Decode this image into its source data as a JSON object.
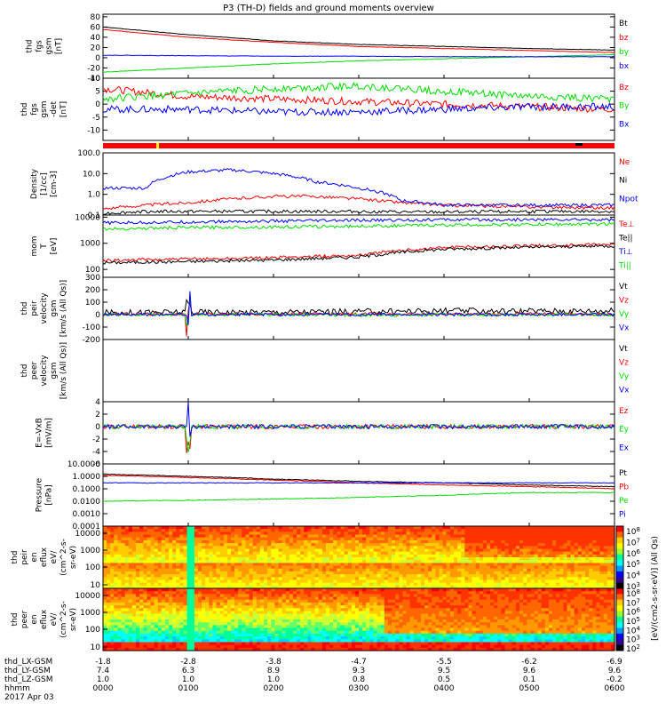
{
  "title": "P3 (TH-D) fields and ground moments overview",
  "colors": {
    "black": "#000000",
    "red": "#ff0000",
    "green": "#00dd00",
    "blue": "#0000ff"
  },
  "chart_data": [
    {
      "type": "line",
      "panel": "fgs_gsm",
      "ylabel": [
        "thd",
        "fgs",
        "gsm",
        "[nT]"
      ],
      "yticks": [
        80,
        60,
        40,
        20,
        0,
        -20,
        -40
      ],
      "ylim": [
        -40,
        85
      ],
      "series": [
        {
          "name": "Bt",
          "color": "black",
          "x": [
            0,
            1,
            2,
            3,
            4,
            5,
            6
          ],
          "y": [
            60,
            45,
            33,
            26,
            22,
            18,
            15
          ]
        },
        {
          "name": "bz",
          "color": "red",
          "x": [
            0,
            1,
            2,
            3,
            4,
            5,
            6
          ],
          "y": [
            55,
            40,
            30,
            22,
            18,
            14,
            10
          ]
        },
        {
          "name": "by",
          "color": "green",
          "x": [
            0,
            1,
            2,
            3,
            4,
            5,
            6
          ],
          "y": [
            -28,
            -20,
            -12,
            -6,
            -2,
            2,
            6
          ]
        },
        {
          "name": "bx",
          "color": "blue",
          "x": [
            0,
            1,
            2,
            3,
            4,
            5,
            6
          ],
          "y": [
            5,
            4,
            3,
            3,
            2,
            2,
            2
          ]
        }
      ]
    },
    {
      "type": "line",
      "panel": "fgs_gsm_detrended",
      "ylabel": [
        "thd",
        "fgs",
        "gsm",
        "-det",
        "[nT]"
      ],
      "yticks": [
        10,
        5,
        0,
        -5,
        -10
      ],
      "ylim": [
        -14,
        10
      ],
      "series": [
        {
          "name": "Bz",
          "color": "red",
          "x": [
            0,
            1,
            2,
            3,
            4,
            5,
            6
          ],
          "y": [
            6,
            3,
            2,
            1,
            0,
            -1,
            -2
          ]
        },
        {
          "name": "By",
          "color": "green",
          "x": [
            0,
            1,
            2,
            3,
            4,
            5,
            6
          ],
          "y": [
            2,
            4,
            6,
            7,
            5,
            3,
            2
          ]
        },
        {
          "name": "Bx",
          "color": "blue",
          "x": [
            0,
            1,
            2,
            3,
            4,
            5,
            6
          ],
          "y": [
            -2,
            -2,
            -3,
            -3,
            -2,
            -1,
            -1
          ]
        }
      ]
    },
    {
      "type": "line",
      "panel": "density",
      "scale": "log",
      "ylabel": [
        "Density",
        "[1/cc]",
        "[cm-3]"
      ],
      "yticks": [
        "100.0",
        "10.0",
        "1.0",
        "0.1"
      ],
      "ylim": [
        0.1,
        100
      ],
      "series": [
        {
          "name": "Ne",
          "color": "red",
          "x": [
            0,
            0.5,
            1,
            1.5,
            2,
            2.5,
            3,
            3.5,
            4,
            5,
            6
          ],
          "y": [
            0.2,
            0.3,
            0.4,
            0.6,
            0.8,
            0.8,
            0.6,
            0.4,
            0.3,
            0.25,
            0.22
          ]
        },
        {
          "name": "Ni",
          "color": "black",
          "x": [
            0,
            0.5,
            1,
            1.5,
            2,
            2.5,
            3,
            3.5,
            4,
            5,
            6
          ],
          "y": [
            0.12,
            0.15,
            0.15,
            0.15,
            0.15,
            0.15,
            0.15,
            0.14,
            0.14,
            0.15,
            0.15
          ]
        },
        {
          "name": "Npot",
          "color": "blue",
          "x": [
            0,
            0.5,
            1,
            1.5,
            2,
            2.5,
            3,
            3.5,
            4,
            5,
            6
          ],
          "y": [
            2,
            2,
            12,
            15,
            10,
            4,
            2,
            0.5,
            0.3,
            0.3,
            0.3
          ]
        }
      ]
    },
    {
      "type": "line",
      "panel": "temperature",
      "scale": "log",
      "ylabel": [
        "mom",
        "T",
        "[eV]"
      ],
      "yticks": [
        "10000",
        "1000",
        "100"
      ],
      "ylim": [
        50,
        12000
      ],
      "series": [
        {
          "name": "Te⊥",
          "color": "red",
          "x": [
            0,
            1,
            2,
            3,
            4,
            5,
            6
          ],
          "y": [
            220,
            250,
            280,
            350,
            700,
            800,
            900
          ]
        },
        {
          "name": "Te||",
          "color": "black",
          "x": [
            0,
            1,
            2,
            3,
            4,
            5,
            6
          ],
          "y": [
            180,
            200,
            230,
            300,
            600,
            700,
            800
          ]
        },
        {
          "name": "Ti⊥",
          "color": "blue",
          "x": [
            0,
            1,
            2,
            3,
            4,
            5,
            6
          ],
          "y": [
            6000,
            6500,
            7000,
            7500,
            8000,
            8000,
            8000
          ]
        },
        {
          "name": "Ti||",
          "color": "green",
          "x": [
            0,
            1,
            2,
            3,
            4,
            5,
            6
          ],
          "y": [
            3500,
            4000,
            4200,
            4500,
            5000,
            5200,
            5500
          ]
        }
      ]
    },
    {
      "type": "line",
      "panel": "peir_velocity",
      "ylabel": [
        "thd",
        "peir",
        "velocity",
        "gsm",
        "[km/s (All Qs)]"
      ],
      "yticks": [
        300,
        200,
        100,
        0,
        -100,
        -200
      ],
      "ylim": [
        -200,
        300
      ],
      "series": [
        {
          "name": "Vt",
          "color": "black",
          "x": [
            0,
            1,
            2,
            3,
            4,
            5,
            6
          ],
          "y": [
            15,
            20,
            20,
            25,
            30,
            30,
            30
          ]
        },
        {
          "name": "Vz",
          "color": "red",
          "x": [
            0,
            1,
            2,
            3,
            4,
            5,
            6
          ],
          "y": [
            5,
            5,
            5,
            5,
            5,
            5,
            5
          ]
        },
        {
          "name": "Vy",
          "color": "green",
          "x": [
            0,
            1,
            2,
            3,
            4,
            5,
            6
          ],
          "y": [
            0,
            0,
            0,
            -5,
            0,
            0,
            0
          ]
        },
        {
          "name": "Vx",
          "color": "blue",
          "x": [
            0,
            1,
            2,
            3,
            4,
            5,
            6
          ],
          "y": [
            0,
            0,
            0,
            0,
            0,
            0,
            0
          ]
        }
      ]
    },
    {
      "type": "line",
      "panel": "peer_velocity",
      "ylabel": [
        "thd",
        "peer",
        "velocity",
        "gsm",
        "[km/s (All Qs)]"
      ],
      "yticks": [],
      "series": [
        {
          "name": "Vt",
          "color": "black",
          "x": [],
          "y": []
        },
        {
          "name": "Vz",
          "color": "red",
          "x": [],
          "y": []
        },
        {
          "name": "Vy",
          "color": "green",
          "x": [],
          "y": []
        },
        {
          "name": "Vx",
          "color": "blue",
          "x": [],
          "y": []
        }
      ]
    },
    {
      "type": "line",
      "panel": "e_field",
      "ylabel": [
        "E=-VxB",
        "[mV/m]"
      ],
      "yticks": [
        4,
        2,
        0,
        -2,
        -4,
        -6
      ],
      "ylim": [
        -6,
        4
      ],
      "series": [
        {
          "name": "Ez",
          "color": "red",
          "x": [
            0,
            1,
            2,
            3,
            4,
            5,
            6
          ],
          "y": [
            0,
            0,
            0,
            0,
            0,
            0,
            0
          ]
        },
        {
          "name": "Ey",
          "color": "green",
          "x": [
            0,
            1,
            2,
            3,
            4,
            5,
            6
          ],
          "y": [
            0,
            0,
            0,
            0,
            0,
            0,
            0
          ]
        },
        {
          "name": "Ex",
          "color": "blue",
          "x": [
            0,
            1,
            2,
            3,
            4,
            5,
            6
          ],
          "y": [
            0,
            0,
            0,
            0,
            0,
            0,
            0
          ]
        }
      ]
    },
    {
      "type": "line",
      "panel": "pressure",
      "scale": "log",
      "ylabel": [
        "Pressure",
        "[nPa]"
      ],
      "yticks": [
        "10.0000",
        "1.0000",
        "0.1000",
        "0.0100",
        "0.0010",
        "0.0001"
      ],
      "ylim": [
        0.0001,
        10
      ],
      "series": [
        {
          "name": "Pt",
          "color": "black",
          "x": [
            0,
            1,
            2,
            3,
            4,
            5,
            6
          ],
          "y": [
            1.5,
            1.0,
            0.6,
            0.4,
            0.3,
            0.2,
            0.15
          ]
        },
        {
          "name": "Pb",
          "color": "red",
          "x": [
            0,
            1,
            2,
            3,
            4,
            5,
            6
          ],
          "y": [
            1.2,
            0.8,
            0.5,
            0.3,
            0.2,
            0.15,
            0.1
          ]
        },
        {
          "name": "Pe",
          "color": "green",
          "x": [
            0,
            1,
            2,
            3,
            4,
            5,
            6
          ],
          "y": [
            0.01,
            0.012,
            0.015,
            0.02,
            0.03,
            0.05,
            0.05
          ]
        },
        {
          "name": "Pi",
          "color": "blue",
          "x": [
            0,
            1,
            2,
            3,
            4,
            5,
            6
          ],
          "y": [
            0.3,
            0.3,
            0.3,
            0.3,
            0.3,
            0.3,
            0.3
          ]
        }
      ]
    },
    {
      "type": "heatmap",
      "panel": "peir_spectrogram",
      "ylabel": [
        "thd",
        "peir",
        "en",
        "eflux",
        "eV/",
        "(cm^2-s-",
        "sr-eV)"
      ],
      "yticks": [
        "10000",
        "1000",
        "100",
        "10"
      ],
      "scale": "log"
    },
    {
      "type": "heatmap",
      "panel": "peer_spectrogram",
      "ylabel": [
        "thd",
        "peer",
        "en",
        "eflux",
        "eV/",
        "(cm^2-s-",
        "sr-eV)"
      ],
      "yticks": [
        "10000",
        "1000",
        "100",
        "10"
      ],
      "scale": "log"
    }
  ],
  "colorbar": {
    "label": "[eV/(cm2-s-sr-eV)] (All Qs)",
    "ticks_top": [
      "10^8",
      "10^7",
      "10^6",
      "10^5",
      "10^4",
      "10^3"
    ],
    "ticks_bottom": [
      "10^8",
      "10^7",
      "10^6",
      "10^5",
      "10^4",
      "10^3",
      "10^2"
    ]
  },
  "xaxis": {
    "rows": [
      {
        "label": "thd_LX-GSM",
        "values": [
          "-1.8",
          "-2.8",
          "-3.8",
          "-4.7",
          "-5.5",
          "-6.2",
          "-6.9"
        ]
      },
      {
        "label": "thd_LY-GSM",
        "values": [
          "7.4",
          "6.3",
          "8.9",
          "9.3",
          "9.5",
          "9.6",
          "9.6"
        ]
      },
      {
        "label": "thd_LZ-GSM",
        "values": [
          "1.0",
          "1.0",
          "1.0",
          "0.8",
          "0.5",
          "0.1",
          "-0.2"
        ]
      },
      {
        "label": "hhmm",
        "values": [
          "0000",
          "0100",
          "0200",
          "0300",
          "0400",
          "0500",
          "0600"
        ]
      }
    ],
    "date": "2017 Apr 03"
  }
}
